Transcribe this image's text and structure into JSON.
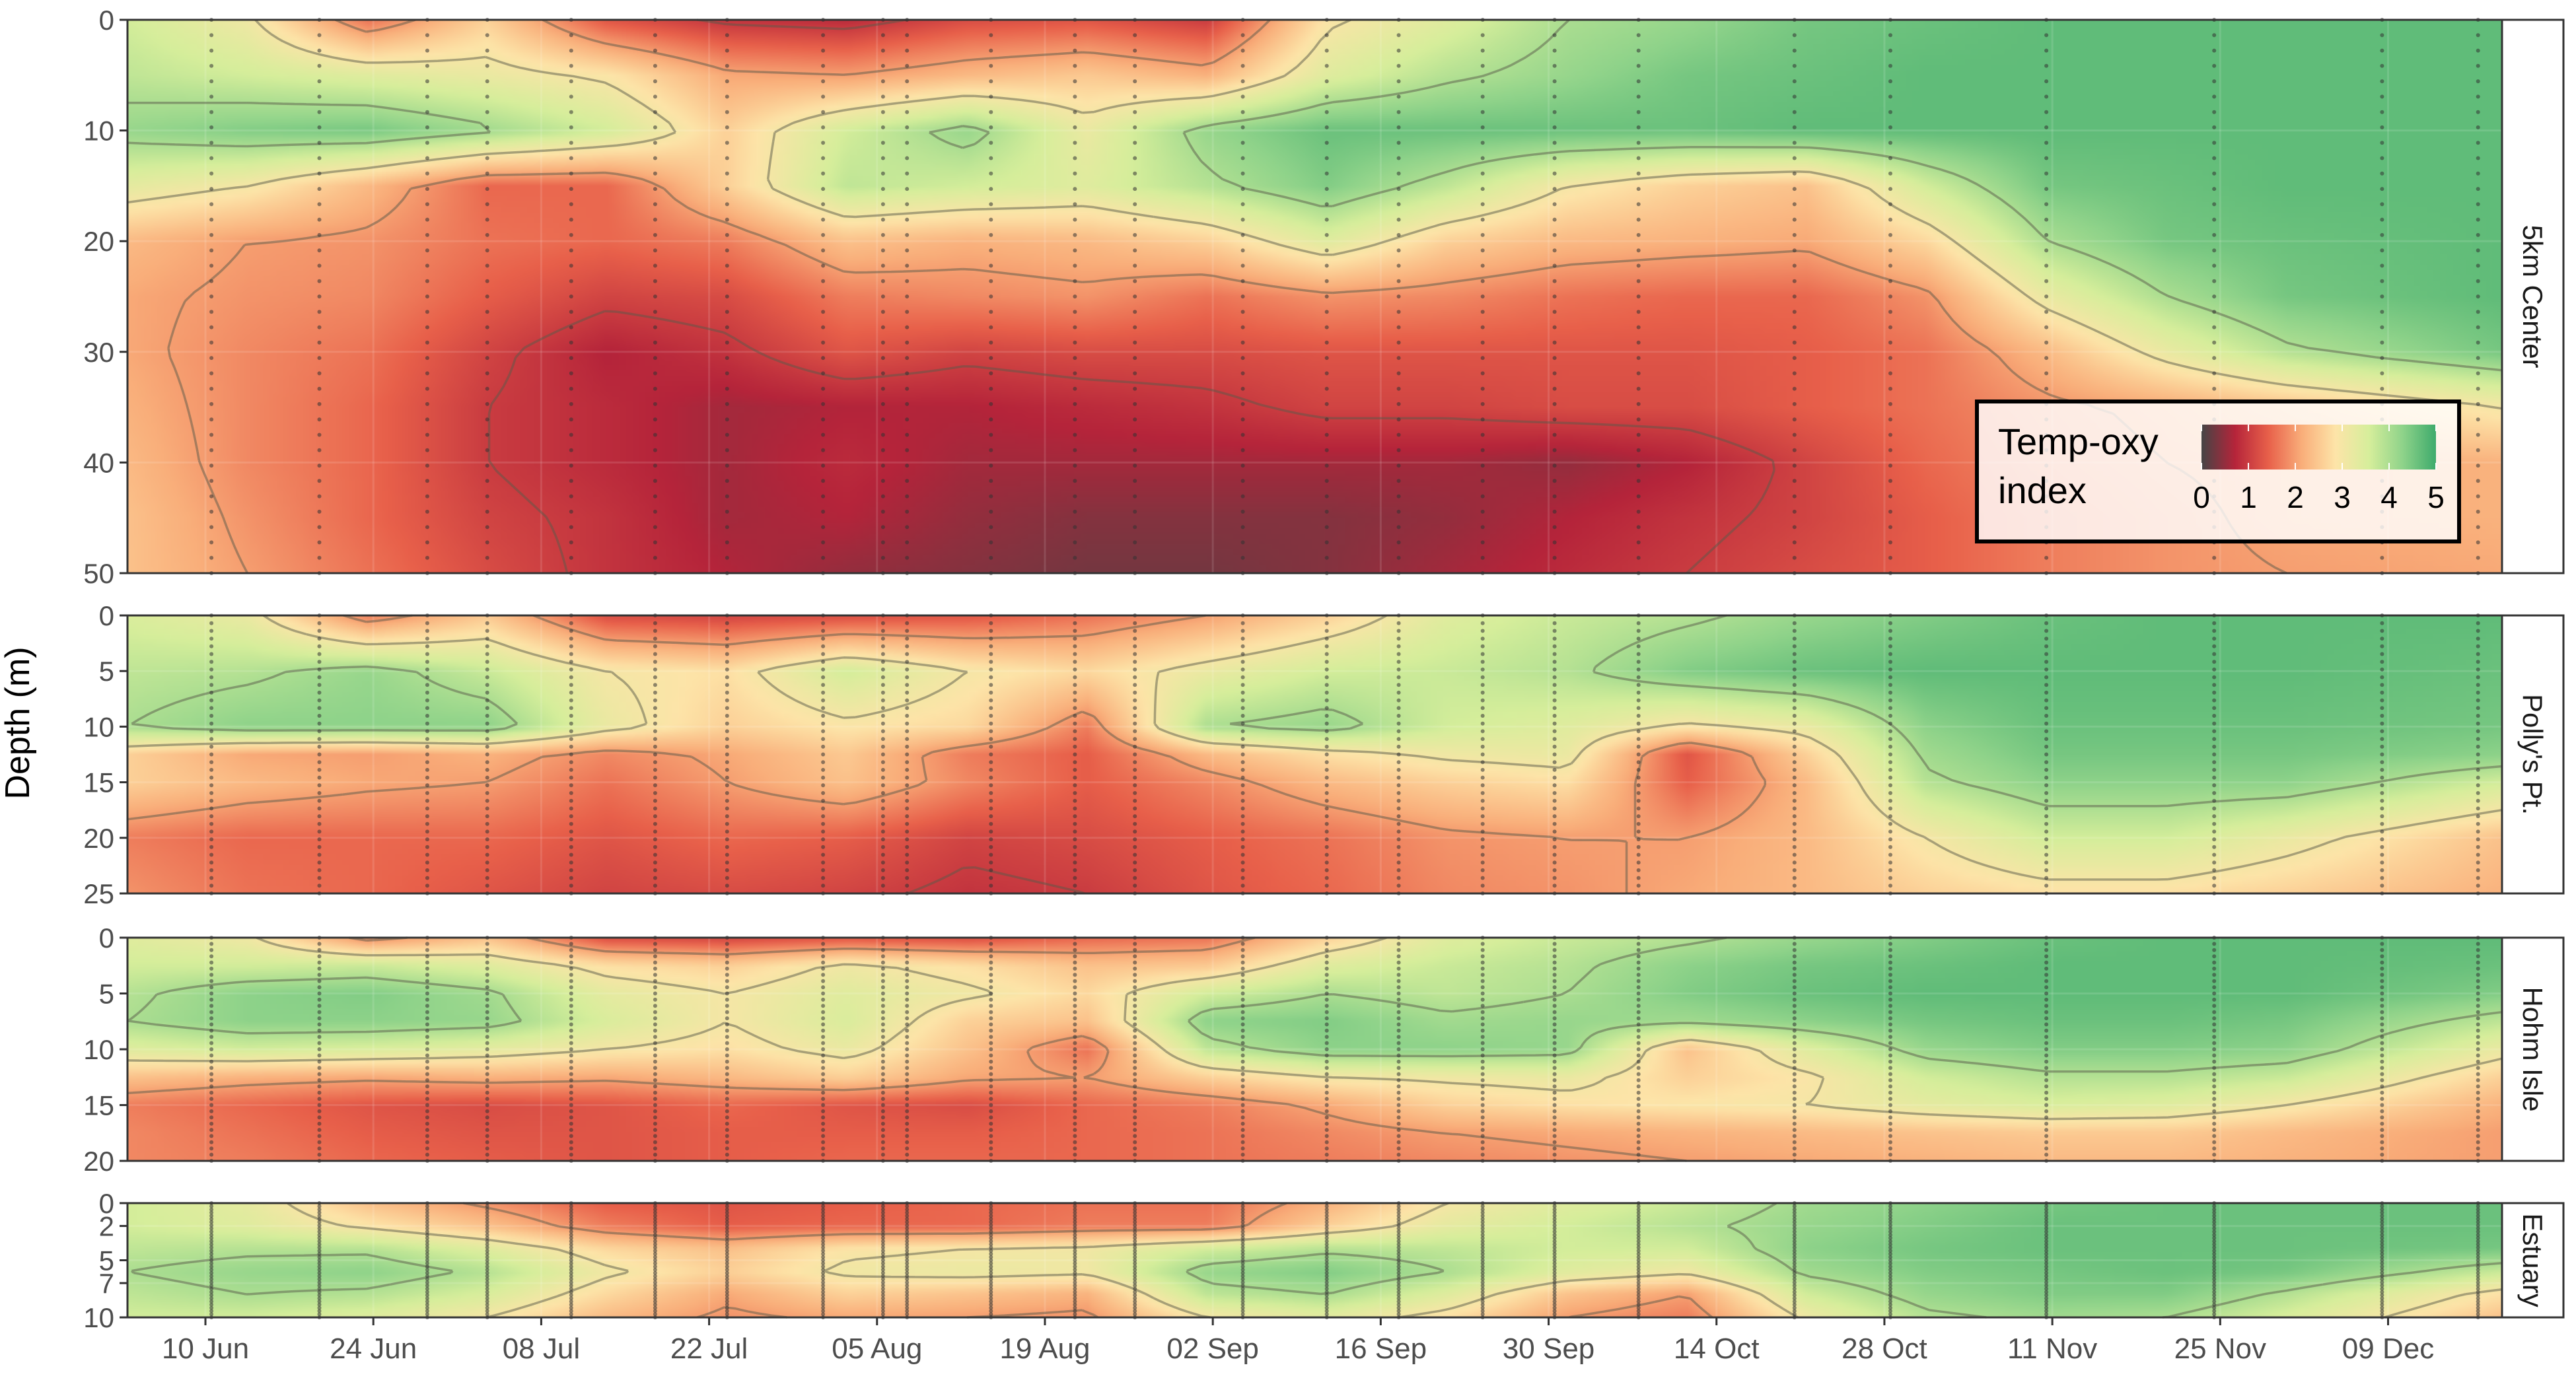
{
  "chart_data": {
    "type": "heatmap",
    "ylabel": "Depth (m)",
    "xlabel": "",
    "x_ticks": [
      "10 Jun",
      "24 Jun",
      "08 Jul",
      "22 Jul",
      "05 Aug",
      "19 Aug",
      "02 Sep",
      "16 Sep",
      "30 Sep",
      "14 Oct",
      "28 Oct",
      "11 Nov",
      "25 Nov",
      "09 Dec"
    ],
    "x_tick_positions": [
      6.5,
      20.5,
      34.5,
      48.5,
      62.5,
      76.5,
      90.5,
      104.5,
      118.5,
      132.5,
      146.5,
      160.5,
      174.5,
      188.5
    ],
    "xlim": [
      0,
      198
    ],
    "sample_days": [
      7,
      16,
      25,
      30,
      37,
      44,
      50,
      58,
      63,
      65,
      72,
      79,
      84,
      93,
      100,
      106,
      113,
      119,
      126,
      139,
      147,
      160,
      174,
      188,
      196
    ],
    "legend": {
      "title": "Temp-oxy\nindex",
      "ticks": [
        "0",
        "1",
        "2",
        "3",
        "4",
        "5"
      ],
      "range": [
        0,
        5
      ],
      "position": "inside-right",
      "colors": [
        "#454545",
        "#b5243a",
        "#e8604a",
        "#f9ae7a",
        "#fde4a8",
        "#d6ee9b",
        "#8fd38a",
        "#3eab6c"
      ]
    },
    "grid": true,
    "contour_interval": 1,
    "panels": [
      {
        "name": "5km Center",
        "ylim": [
          0,
          50
        ],
        "y_ticks": [
          "0",
          "10",
          "20",
          "30",
          "40",
          "50"
        ],
        "depths": [
          0,
          5,
          10,
          15,
          20,
          25,
          30,
          35,
          40,
          45,
          50
        ],
        "days": [
          0,
          10,
          20,
          30,
          40,
          50,
          60,
          70,
          80,
          90,
          100,
          110,
          120,
          130,
          140,
          150,
          160,
          170,
          180,
          198
        ],
        "values": [
          [
            3.6,
            3.1,
            1.6,
            2.6,
            1.3,
            0.9,
            0.8,
            1.2,
            1.3,
            1.0,
            2.9,
            3.4,
            4.0,
            4.2,
            4.5,
            4.6,
            4.7,
            4.7,
            4.7,
            4.7
          ],
          [
            3.8,
            3.6,
            3.4,
            3.2,
            2.9,
            2.1,
            2.0,
            2.3,
            2.5,
            2.2,
            3.4,
            3.9,
            4.2,
            4.5,
            4.6,
            4.7,
            4.7,
            4.7,
            4.7,
            4.7
          ],
          [
            4.2,
            4.4,
            4.5,
            4.1,
            3.6,
            2.6,
            3.6,
            4.2,
            3.2,
            4.2,
            4.6,
            4.6,
            4.6,
            4.6,
            4.7,
            4.7,
            4.7,
            4.7,
            4.7,
            4.7
          ],
          [
            3.3,
            3.0,
            2.3,
            1.5,
            1.5,
            2.6,
            3.8,
            3.6,
            3.4,
            3.9,
            4.4,
            3.8,
            3.0,
            2.6,
            2.4,
            3.6,
            4.5,
            4.6,
            4.7,
            4.7
          ],
          [
            2.3,
            2.0,
            1.9,
            1.6,
            1.5,
            1.7,
            2.4,
            2.2,
            2.3,
            2.6,
            3.4,
            2.6,
            2.3,
            2.2,
            2.1,
            2.7,
            4.0,
            4.5,
            4.6,
            4.7
          ],
          [
            2.1,
            1.9,
            1.8,
            1.4,
            1.1,
            1.2,
            1.7,
            1.8,
            1.9,
            1.6,
            1.9,
            1.8,
            1.6,
            1.5,
            1.5,
            1.9,
            3.2,
            4.0,
            4.5,
            4.7
          ],
          [
            2.1,
            1.8,
            1.6,
            1.1,
            0.7,
            0.9,
            1.3,
            1.1,
            1.2,
            1.2,
            1.3,
            1.3,
            1.3,
            1.3,
            1.4,
            1.6,
            2.3,
            3.2,
            3.9,
            4.5
          ],
          [
            2.2,
            1.8,
            1.5,
            1.0,
            0.8,
            0.6,
            0.7,
            0.7,
            0.8,
            0.9,
            1.1,
            1.1,
            1.2,
            1.2,
            1.4,
            1.6,
            1.9,
            2.1,
            2.4,
            3.0
          ],
          [
            2.3,
            1.8,
            1.5,
            1.0,
            0.8,
            0.6,
            0.8,
            0.6,
            0.6,
            0.6,
            0.6,
            0.6,
            0.5,
            0.7,
            1.1,
            1.5,
            1.8,
            2.0,
            2.1,
            2.2
          ],
          [
            2.4,
            1.9,
            1.5,
            1.1,
            0.9,
            0.6,
            0.7,
            0.5,
            0.4,
            0.4,
            0.4,
            0.5,
            0.7,
            0.9,
            1.1,
            1.4,
            1.7,
            1.9,
            2.1,
            2.2
          ],
          [
            2.4,
            2.0,
            1.6,
            1.2,
            0.9,
            0.7,
            0.5,
            0.4,
            0.3,
            0.3,
            0.4,
            0.6,
            0.8,
            1.0,
            1.2,
            1.4,
            1.7,
            1.9,
            2.0,
            2.1
          ]
        ]
      },
      {
        "name": "Polly's Pt.",
        "ylim": [
          0,
          25
        ],
        "y_ticks": [
          "0",
          "5",
          "10",
          "15",
          "20",
          "25"
        ],
        "depths": [
          0,
          5,
          10,
          12.5,
          15,
          20,
          25
        ],
        "days": [
          0,
          10,
          20,
          30,
          40,
          50,
          60,
          70,
          80,
          90,
          100,
          110,
          120,
          130,
          140,
          150,
          160,
          170,
          180,
          198
        ],
        "values": [
          [
            3.5,
            3.2,
            1.7,
            2.5,
            1.2,
            1.1,
            1.2,
            1.3,
            1.6,
            2.0,
            2.6,
            3.4,
            3.7,
            3.9,
            4.2,
            4.4,
            4.6,
            4.7,
            4.7,
            4.7
          ],
          [
            3.8,
            3.9,
            4.2,
            3.7,
            3.0,
            2.8,
            3.6,
            3.0,
            2.7,
            3.2,
            3.6,
            3.7,
            3.9,
            4.4,
            4.6,
            4.7,
            4.7,
            4.7,
            4.7,
            4.6
          ],
          [
            4.0,
            4.3,
            4.3,
            4.3,
            3.2,
            2.6,
            2.9,
            2.7,
            1.7,
            4.0,
            4.2,
            3.6,
            3.4,
            2.9,
            3.2,
            4.3,
            4.6,
            4.6,
            4.6,
            4.5
          ],
          [
            2.6,
            2.1,
            2.0,
            2.2,
            1.8,
            2.1,
            2.5,
            1.7,
            1.4,
            2.3,
            2.8,
            3.1,
            3.2,
            1.3,
            2.6,
            4.1,
            4.5,
            4.5,
            4.5,
            4.3
          ],
          [
            2.6,
            2.3,
            2.1,
            2.0,
            1.6,
            2.0,
            2.4,
            1.8,
            1.4,
            1.8,
            2.3,
            2.6,
            2.8,
            1.4,
            2.3,
            3.9,
            4.3,
            4.3,
            4.3,
            3.6
          ],
          [
            1.7,
            1.5,
            1.5,
            1.5,
            1.3,
            1.5,
            1.4,
            1.1,
            1.2,
            1.4,
            1.6,
            1.9,
            2.0,
            2.0,
            2.3,
            3.0,
            3.6,
            3.6,
            3.2,
            2.4
          ],
          [
            1.9,
            1.6,
            1.5,
            1.3,
            1.1,
            1.2,
            1.1,
            0.9,
            1.0,
            1.3,
            1.5,
            1.8,
            1.9,
            2.1,
            2.3,
            2.6,
            2.8,
            2.8,
            2.6,
            2.2
          ]
        ]
      },
      {
        "name": "Hohm Isle",
        "ylim": [
          0,
          20
        ],
        "y_ticks": [
          "0",
          "5",
          "10",
          "15",
          "20"
        ],
        "depths": [
          0,
          2.5,
          5,
          7.5,
          10,
          12.5,
          15,
          17.5,
          20
        ],
        "days": [
          0,
          10,
          20,
          30,
          40,
          50,
          60,
          70,
          80,
          90,
          100,
          110,
          120,
          130,
          140,
          150,
          160,
          170,
          180,
          198
        ],
        "values": [
          [
            3.4,
            3.1,
            1.8,
            2.4,
            1.2,
            1.1,
            1.3,
            1.2,
            1.5,
            1.6,
            2.6,
            3.4,
            3.7,
            3.9,
            4.2,
            4.4,
            4.6,
            4.7,
            4.7,
            4.7
          ],
          [
            3.6,
            3.6,
            3.7,
            3.4,
            2.8,
            2.6,
            3.1,
            2.8,
            2.4,
            2.5,
            3.4,
            3.7,
            3.9,
            4.3,
            4.5,
            4.6,
            4.7,
            4.7,
            4.7,
            4.6
          ],
          [
            3.9,
            4.3,
            4.4,
            4.1,
            3.3,
            3.0,
            3.4,
            3.1,
            2.7,
            3.6,
            4.0,
            3.8,
            4.0,
            4.4,
            4.6,
            4.7,
            4.7,
            4.7,
            4.7,
            4.4
          ],
          [
            4.0,
            4.3,
            4.3,
            4.2,
            3.5,
            3.0,
            3.5,
            2.6,
            2.4,
            4.3,
            4.4,
            4.1,
            4.2,
            4.1,
            4.3,
            4.5,
            4.6,
            4.6,
            4.5,
            3.8
          ],
          [
            3.4,
            3.6,
            3.5,
            3.3,
            3.0,
            2.8,
            3.2,
            2.4,
            1.6,
            3.8,
            4.3,
            4.3,
            4.2,
            2.4,
            3.4,
            4.2,
            4.4,
            4.4,
            4.3,
            3.2
          ],
          [
            2.4,
            2.2,
            2.1,
            2.2,
            2.1,
            2.3,
            2.6,
            2.1,
            2.0,
            2.6,
            3.0,
            3.1,
            3.2,
            2.6,
            2.9,
            3.6,
            3.9,
            3.9,
            3.7,
            2.6
          ],
          [
            1.7,
            1.5,
            1.3,
            1.2,
            1.3,
            1.5,
            1.3,
            1.2,
            1.5,
            1.7,
            2.1,
            2.6,
            2.8,
            2.9,
            3.0,
            3.3,
            3.5,
            3.4,
            3.0,
            2.2
          ],
          [
            1.8,
            1.6,
            1.4,
            1.3,
            1.3,
            1.4,
            1.4,
            1.4,
            1.5,
            1.6,
            1.8,
            2.0,
            2.1,
            2.2,
            2.3,
            2.4,
            2.5,
            2.5,
            2.3,
            2.0
          ],
          [
            1.8,
            1.7,
            1.5,
            1.4,
            1.3,
            1.4,
            1.5,
            1.5,
            1.5,
            1.6,
            1.7,
            1.8,
            1.9,
            2.0,
            2.1,
            2.2,
            2.3,
            2.3,
            2.2,
            2.0
          ]
        ]
      },
      {
        "name": "Estuary",
        "ylim": [
          0,
          10
        ],
        "y_ticks": [
          "0",
          "2",
          "5",
          "7",
          "10"
        ],
        "depths": [
          0,
          2,
          4,
          6,
          8,
          10
        ],
        "days": [
          0,
          10,
          20,
          30,
          40,
          50,
          60,
          70,
          80,
          90,
          100,
          110,
          120,
          130,
          140,
          150,
          160,
          170,
          180,
          198
        ],
        "values": [
          [
            3.6,
            3.3,
            2.4,
            1.9,
            1.4,
            1.3,
            1.4,
            1.5,
            1.6,
            1.6,
            2.2,
            3.0,
            3.4,
            3.7,
            4.1,
            4.3,
            4.5,
            4.6,
            4.6,
            4.6
          ],
          [
            3.6,
            3.4,
            2.9,
            2.4,
            1.7,
            1.4,
            1.5,
            1.5,
            1.7,
            1.7,
            2.6,
            3.3,
            3.6,
            3.9,
            4.2,
            4.4,
            4.6,
            4.6,
            4.6,
            4.6
          ],
          [
            3.8,
            3.9,
            3.9,
            3.4,
            2.7,
            2.4,
            2.9,
            3.0,
            3.1,
            3.6,
            3.9,
            3.8,
            3.6,
            3.6,
            4.3,
            4.5,
            4.6,
            4.6,
            4.6,
            4.5
          ],
          [
            4.0,
            4.2,
            4.3,
            3.9,
            3.1,
            2.6,
            3.1,
            3.2,
            3.1,
            4.2,
            4.4,
            4.0,
            3.4,
            3.1,
            4.1,
            4.4,
            4.5,
            4.6,
            4.5,
            3.7
          ],
          [
            3.8,
            4.0,
            3.9,
            3.5,
            2.7,
            2.1,
            2.6,
            2.4,
            2.2,
            3.8,
            4.0,
            3.4,
            2.4,
            2.0,
            3.6,
            4.2,
            4.4,
            4.4,
            3.9,
            2.8
          ],
          [
            3.6,
            3.6,
            3.4,
            3.0,
            2.3,
            1.9,
            2.1,
            2.0,
            1.9,
            3.0,
            3.3,
            2.8,
            2.0,
            1.7,
            3.1,
            3.9,
            4.1,
            4.0,
            3.5,
            2.4
          ]
        ]
      }
    ]
  }
}
